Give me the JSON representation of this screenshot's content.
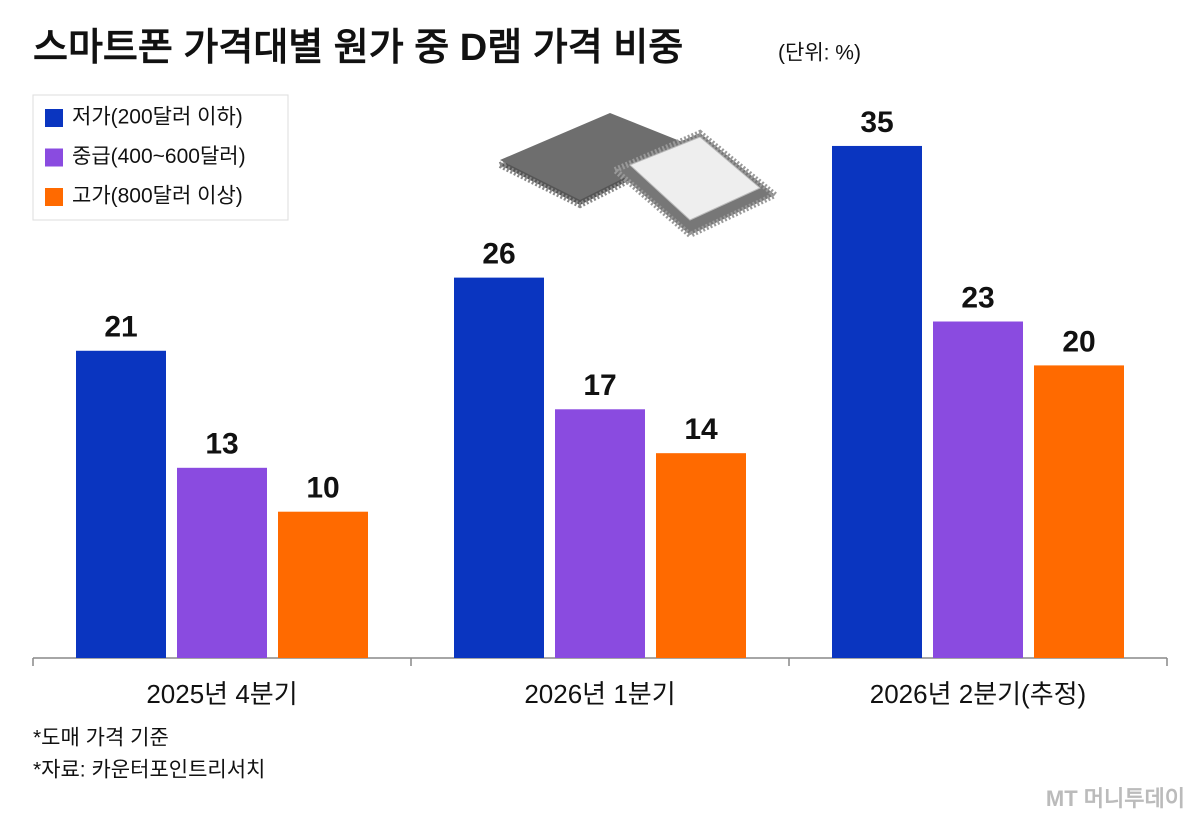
{
  "chart_data": {
    "type": "bar",
    "title": "스마트폰 가격대별 원가 중 D램 가격 비중",
    "subtitle": "(단위: %)",
    "categories": [
      "2025년 4분기",
      "2026년 1분기",
      "2026년 2분기(추정)"
    ],
    "series": [
      {
        "name": "저가(200달러 이하)",
        "color": "#0a35c0",
        "values": [
          21,
          26,
          35
        ]
      },
      {
        "name": "중급(400~600달러)",
        "color": "#8a4be0",
        "values": [
          13,
          17,
          23
        ]
      },
      {
        "name": "고가(800달러 이상)",
        "color": "#ff6a00",
        "values": [
          10,
          14,
          20
        ]
      }
    ],
    "notes": [
      "*도매 가격 기준",
      "*자료: 카운터포인트리서치"
    ],
    "watermark": "MT 머니투데이"
  }
}
